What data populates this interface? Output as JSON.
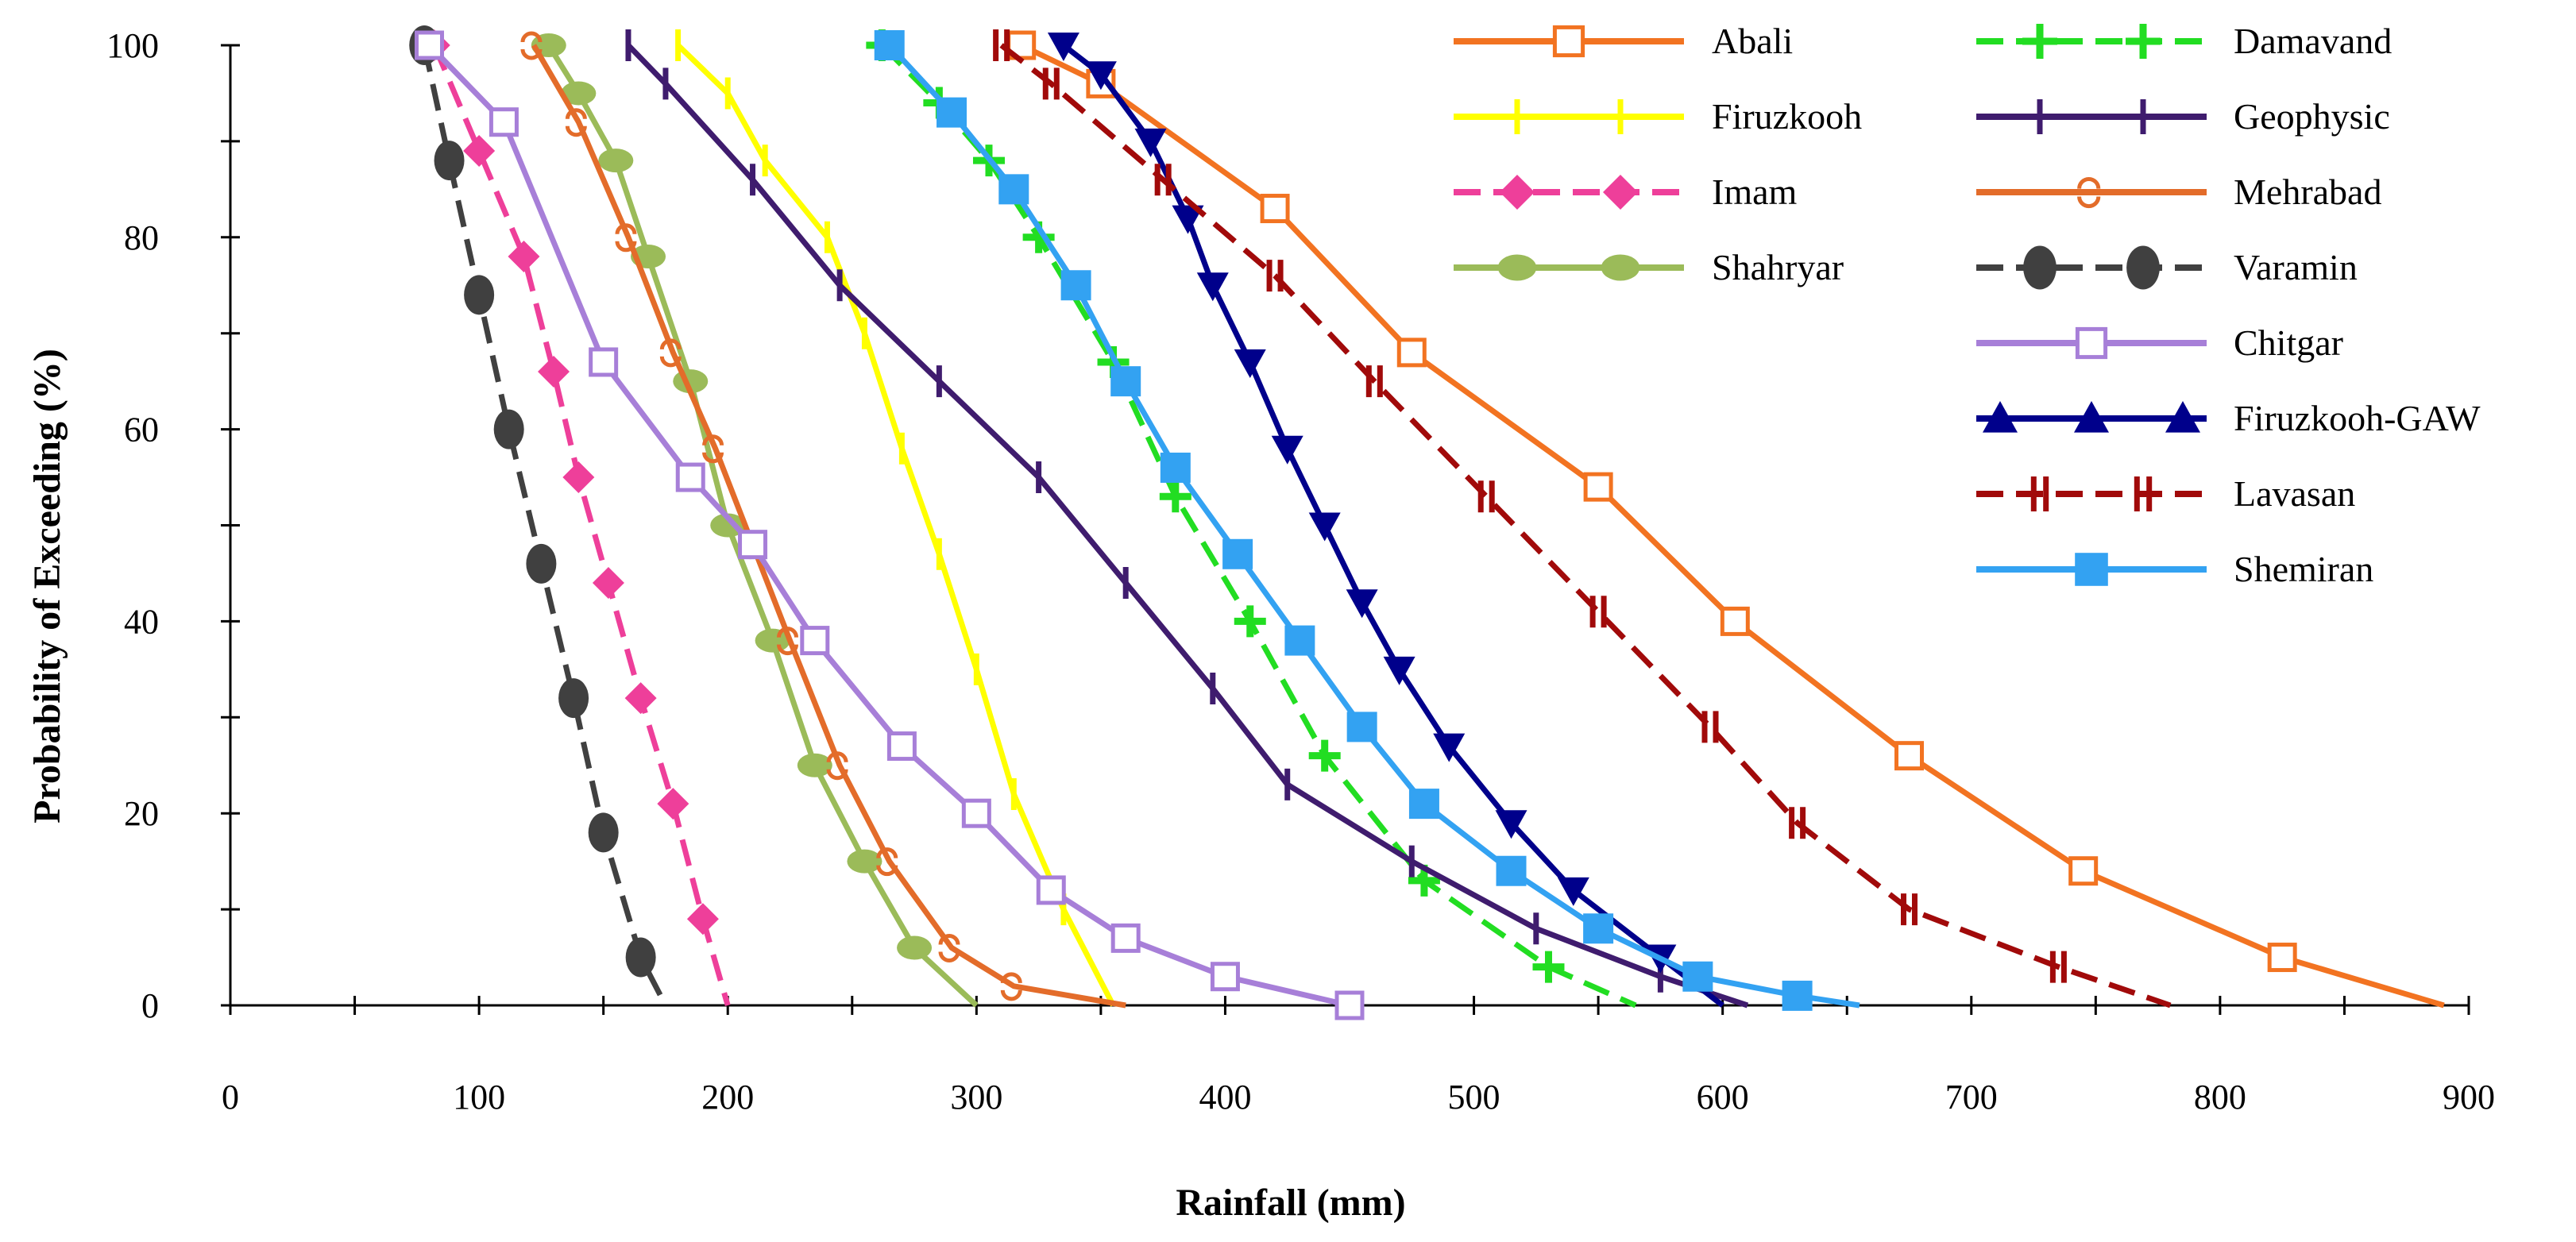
{
  "chart_data": {
    "type": "line",
    "title": "",
    "xlabel": "Rainfall (mm)",
    "ylabel": "Probability of Exceeding (%)",
    "xlim": [
      0,
      900
    ],
    "ylim": [
      0,
      100
    ],
    "xticks": [
      0,
      100,
      200,
      300,
      400,
      500,
      600,
      700,
      800,
      900
    ],
    "yticks": [
      0,
      20,
      40,
      60,
      80,
      100
    ],
    "grid": false,
    "legend_position": "top-right",
    "series": [
      {
        "name": "Abali",
        "color": "#F27321",
        "dash": "solid",
        "marker": "square-open",
        "x": [
          318,
          350,
          420,
          475,
          550,
          605,
          675,
          745,
          825,
          890
        ],
        "y": [
          100,
          96,
          83,
          68,
          54,
          40,
          26,
          14,
          5,
          0
        ]
      },
      {
        "name": "Firuzkooh",
        "color": "#FFFF00",
        "dash": "solid",
        "marker": "vbar",
        "x": [
          180,
          200,
          215,
          240,
          255,
          270,
          285,
          300,
          315,
          335,
          355
        ],
        "y": [
          100,
          95,
          88,
          80,
          70,
          58,
          47,
          35,
          22,
          10,
          0
        ]
      },
      {
        "name": "Imam",
        "color": "#EE3F9A",
        "dash": "dash",
        "marker": "diamond",
        "x": [
          82,
          100,
          118,
          130,
          140,
          152,
          165,
          178,
          190,
          200
        ],
        "y": [
          100,
          89,
          78,
          66,
          55,
          44,
          32,
          21,
          9,
          0
        ]
      },
      {
        "name": "Shahryar",
        "color": "#9BBB59",
        "dash": "solid",
        "marker": "mound",
        "x": [
          128,
          140,
          155,
          168,
          185,
          200,
          218,
          235,
          255,
          275,
          300
        ],
        "y": [
          100,
          95,
          88,
          78,
          65,
          50,
          38,
          25,
          15,
          6,
          0
        ]
      },
      {
        "name": "Damavand",
        "color": "#22DD22",
        "dash": "dash",
        "marker": "plus",
        "x": [
          262,
          285,
          305,
          325,
          355,
          380,
          410,
          440,
          480,
          530,
          565
        ],
        "y": [
          100,
          94,
          88,
          80,
          67,
          53,
          40,
          26,
          13,
          4,
          0
        ]
      },
      {
        "name": "Geophysic",
        "color": "#3F1C6E",
        "dash": "solid",
        "marker": "vbar",
        "x": [
          160,
          175,
          210,
          245,
          285,
          325,
          360,
          395,
          425,
          475,
          525,
          575,
          610
        ],
        "y": [
          100,
          96,
          86,
          75,
          65,
          55,
          44,
          33,
          23,
          15,
          8,
          3,
          0
        ]
      },
      {
        "name": "Mehrabad",
        "color": "#E36C2A",
        "dash": "solid",
        "marker": "ring",
        "x": [
          122,
          140,
          160,
          178,
          195,
          210,
          225,
          245,
          265,
          290,
          315,
          360
        ],
        "y": [
          100,
          92,
          80,
          68,
          58,
          48,
          38,
          25,
          15,
          6,
          2,
          0
        ]
      },
      {
        "name": "Varamin",
        "color": "#404040",
        "dash": "dash",
        "marker": "blob",
        "x": [
          78,
          88,
          100,
          112,
          125,
          138,
          150,
          165,
          175
        ],
        "y": [
          100,
          88,
          74,
          60,
          46,
          32,
          18,
          5,
          0
        ]
      },
      {
        "name": "Chitgar",
        "color": "#A77FD8",
        "dash": "solid",
        "marker": "square-open",
        "x": [
          80,
          110,
          150,
          185,
          210,
          235,
          270,
          300,
          330,
          360,
          400,
          450,
          455
        ],
        "y": [
          100,
          92,
          67,
          55,
          48,
          38,
          27,
          20,
          12,
          7,
          3,
          0,
          0
        ]
      },
      {
        "name": "Firuzkooh-GAW",
        "color": "#00008B",
        "dash": "solid",
        "marker": "triangle-down",
        "x": [
          335,
          350,
          370,
          385,
          395,
          410,
          425,
          440,
          455,
          470,
          490,
          515,
          540,
          575,
          600
        ],
        "y": [
          100,
          97,
          90,
          82,
          75,
          67,
          58,
          50,
          42,
          35,
          27,
          19,
          12,
          5,
          0
        ]
      },
      {
        "name": "Lavasan",
        "color": "#A10A0A",
        "dash": "dash",
        "marker": "hash",
        "x": [
          310,
          330,
          375,
          420,
          460,
          505,
          550,
          595,
          630,
          675,
          735,
          780
        ],
        "y": [
          100,
          96,
          86,
          76,
          65,
          53,
          41,
          29,
          19,
          10,
          4,
          0
        ]
      },
      {
        "name": "Shemiran",
        "color": "#33A2F2",
        "dash": "solid",
        "marker": "square-filled",
        "x": [
          265,
          290,
          315,
          340,
          360,
          380,
          405,
          430,
          455,
          480,
          515,
          550,
          590,
          630,
          655
        ],
        "y": [
          100,
          93,
          85,
          75,
          65,
          56,
          47,
          38,
          29,
          21,
          14,
          8,
          3,
          1,
          0
        ]
      }
    ]
  }
}
